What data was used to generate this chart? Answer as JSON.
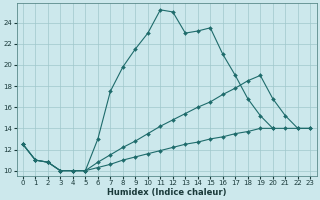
{
  "xlabel": "Humidex (Indice chaleur)",
  "bg_color": "#cce8ec",
  "grid_color": "#a0c8cc",
  "line_color": "#1e6b6b",
  "xlim": [
    -0.5,
    23.5
  ],
  "ylim": [
    9.5,
    25.8
  ],
  "xticks": [
    0,
    1,
    2,
    3,
    4,
    5,
    6,
    7,
    8,
    9,
    10,
    11,
    12,
    13,
    14,
    15,
    16,
    17,
    18,
    19,
    20,
    21,
    22,
    23
  ],
  "yticks": [
    10,
    12,
    14,
    16,
    18,
    20,
    22,
    24
  ],
  "line1_x": [
    0,
    1,
    2,
    3,
    4,
    5,
    6,
    7,
    8,
    9,
    10,
    11,
    12,
    13,
    14,
    15,
    16,
    17,
    18,
    19,
    20
  ],
  "line1_y": [
    12.5,
    11.0,
    10.8,
    10.0,
    10.0,
    10.0,
    13.0,
    17.5,
    19.8,
    21.5,
    23.0,
    25.2,
    25.0,
    23.0,
    23.2,
    23.5,
    21.0,
    19.0,
    16.8,
    15.2,
    14.0
  ],
  "line2_x": [
    0,
    1,
    2,
    3,
    4,
    5,
    6,
    7,
    8,
    9,
    10,
    11,
    12,
    13,
    14,
    15,
    16,
    17,
    18,
    19,
    20,
    21,
    22,
    23
  ],
  "line2_y": [
    12.5,
    11.0,
    10.8,
    10.0,
    10.0,
    10.0,
    10.8,
    11.5,
    12.2,
    12.8,
    13.5,
    14.2,
    14.8,
    15.4,
    16.0,
    16.5,
    17.2,
    17.8,
    18.5,
    19.0,
    16.8,
    15.2,
    14.0,
    14.0
  ],
  "line3_x": [
    0,
    1,
    2,
    3,
    4,
    5,
    6,
    7,
    8,
    9,
    10,
    11,
    12,
    13,
    14,
    15,
    16,
    17,
    18,
    19,
    20,
    21,
    22,
    23
  ],
  "line3_y": [
    12.5,
    11.0,
    10.8,
    10.0,
    10.0,
    10.0,
    10.3,
    10.6,
    11.0,
    11.3,
    11.6,
    11.9,
    12.2,
    12.5,
    12.7,
    13.0,
    13.2,
    13.5,
    13.7,
    14.0,
    14.0,
    14.0,
    14.0,
    14.0
  ]
}
